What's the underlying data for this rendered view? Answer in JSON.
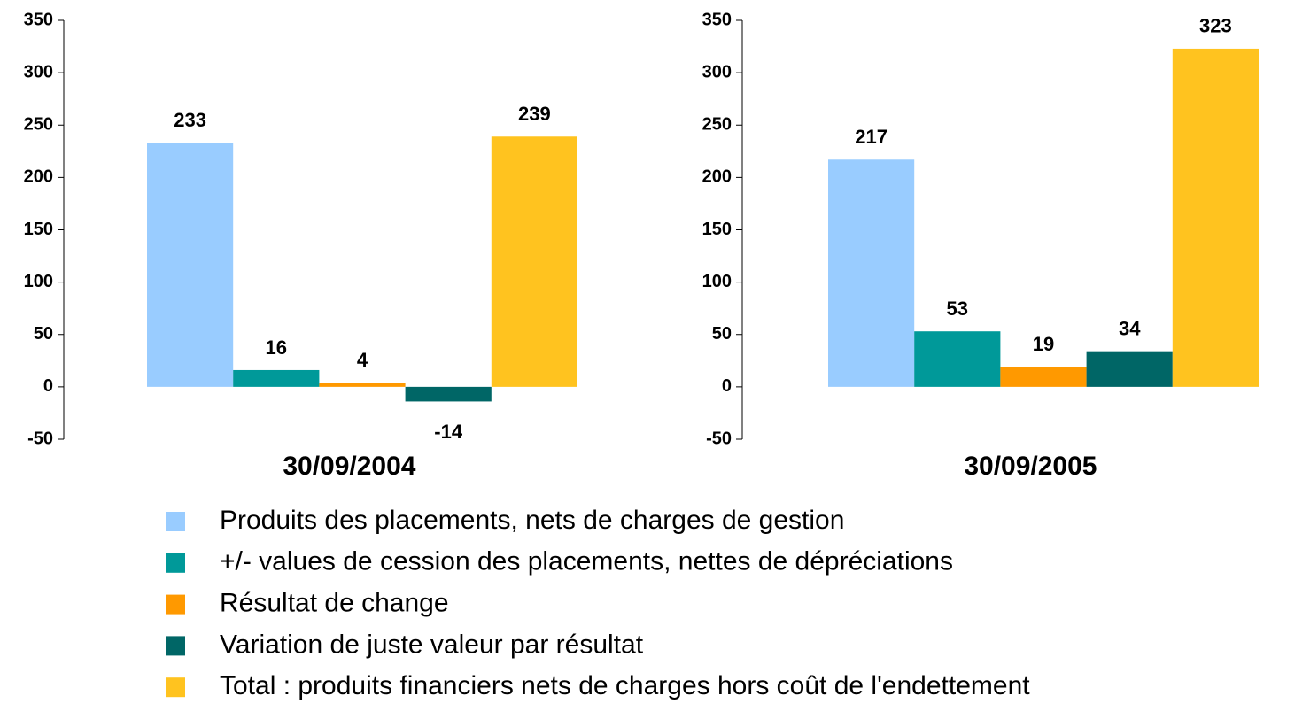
{
  "chart_data": {
    "type": "bar",
    "categories": [
      "30/09/2004",
      "30/09/2005"
    ],
    "series": [
      {
        "name": "Produits des placements, nets de charges de gestion",
        "color": "#99ccff",
        "values": [
          233,
          217
        ]
      },
      {
        "name": "+/- values de cession des placements, nettes de dépréciations",
        "color": "#009999",
        "values": [
          16,
          53
        ]
      },
      {
        "name": "Résultat de change",
        "color": "#ff9900",
        "values": [
          4,
          19
        ]
      },
      {
        "name": "Variation de juste valeur par résultat",
        "color": "#006666",
        "values": [
          -14,
          34
        ]
      },
      {
        "name": "Total : produits financiers nets de charges hors coût de l'endettement",
        "color": "#ffc31f",
        "values": [
          239,
          323
        ]
      }
    ],
    "ylim": [
      -50,
      350
    ],
    "yticks": [
      -50,
      0,
      50,
      100,
      150,
      200,
      250,
      300,
      350
    ]
  }
}
